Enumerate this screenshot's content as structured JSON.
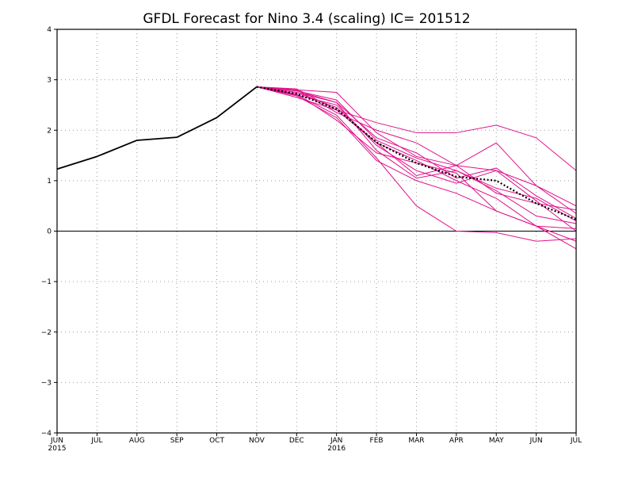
{
  "chart_data": {
    "type": "line",
    "title": "GFDL Forecast for Nino 3.4 (scaling) IC= 201512",
    "xlabel": "",
    "ylabel": "",
    "categories": [
      "JUN",
      "JUL",
      "AUG",
      "SEP",
      "OCT",
      "NOV",
      "DEC",
      "JAN",
      "FEB",
      "MAR",
      "APR",
      "MAY",
      "JUN",
      "JUL"
    ],
    "year_labels": [
      {
        "index": 0,
        "text": "2015"
      },
      {
        "index": 7,
        "text": "2016"
      }
    ],
    "ylim": [
      -4,
      4
    ],
    "yticks": [
      -4,
      -3,
      -2,
      -1,
      0,
      1,
      2,
      3,
      4
    ],
    "grid": true,
    "legend": "none",
    "zero_line": true,
    "colors": {
      "observed": "#000000",
      "members": "#e0118a",
      "mean": "#000000",
      "grid": "#9a9a9a"
    },
    "observed": {
      "x": [
        0,
        1,
        2,
        3,
        4,
        5
      ],
      "values": [
        1.23,
        1.48,
        1.8,
        1.86,
        2.25,
        2.86
      ]
    },
    "ensemble_members": [
      {
        "x": [
          5,
          6,
          7,
          8,
          9,
          10,
          11,
          12,
          13
        ],
        "values": [
          2.86,
          2.8,
          2.75,
          1.95,
          1.48,
          1.3,
          0.75,
          0.55,
          0.42
        ]
      },
      {
        "x": [
          5,
          6,
          7,
          8,
          9,
          10,
          11,
          12,
          13
        ],
        "values": [
          2.86,
          2.78,
          2.6,
          1.8,
          1.45,
          1.2,
          0.8,
          0.3,
          0.15
        ]
      },
      {
        "x": [
          5,
          6,
          7,
          8,
          9,
          10,
          11,
          12,
          13
        ],
        "values": [
          2.86,
          2.75,
          2.55,
          1.85,
          1.55,
          1.05,
          1.25,
          0.7,
          0.25
        ]
      },
      {
        "x": [
          5,
          6,
          7,
          8,
          9,
          10,
          11,
          12,
          13
        ],
        "values": [
          2.86,
          2.7,
          2.5,
          1.7,
          1.2,
          0.95,
          1.2,
          0.6,
          0.0
        ]
      },
      {
        "x": [
          5,
          6,
          7,
          8,
          9,
          10,
          11,
          12,
          13
        ],
        "values": [
          2.86,
          2.7,
          2.3,
          1.45,
          0.5,
          0.0,
          -0.03,
          -0.2,
          -0.15
        ]
      },
      {
        "x": [
          5,
          6,
          7,
          8,
          9,
          10,
          11,
          12,
          13
        ],
        "values": [
          2.86,
          2.68,
          2.25,
          1.4,
          1.0,
          0.75,
          0.4,
          0.1,
          -0.35
        ]
      },
      {
        "x": [
          5,
          6,
          7,
          8,
          9,
          10,
          11,
          12,
          13
        ],
        "values": [
          2.86,
          2.82,
          2.4,
          2.15,
          1.95,
          1.95,
          2.1,
          1.85,
          1.2
        ]
      },
      {
        "x": [
          5,
          6,
          7,
          8,
          9,
          10,
          11,
          12,
          13
        ],
        "values": [
          2.86,
          2.8,
          2.35,
          2.0,
          1.75,
          1.3,
          1.2,
          0.9,
          0.35
        ]
      },
      {
        "x": [
          5,
          6,
          7,
          8,
          9,
          10,
          11,
          12,
          13
        ],
        "values": [
          2.86,
          2.75,
          2.45,
          1.75,
          1.1,
          1.3,
          1.75,
          0.9,
          0.5
        ]
      },
      {
        "x": [
          5,
          6,
          7,
          8,
          9,
          10,
          11,
          12,
          13
        ],
        "values": [
          2.86,
          2.72,
          2.2,
          1.55,
          1.35,
          1.15,
          0.4,
          0.1,
          -0.2
        ]
      },
      {
        "x": [
          5,
          6,
          7,
          8,
          9,
          10,
          11,
          12,
          13
        ],
        "values": [
          2.86,
          2.78,
          2.55,
          1.6,
          1.05,
          1.2,
          0.85,
          0.65,
          0.2
        ]
      },
      {
        "x": [
          5,
          6,
          7,
          8,
          9,
          10,
          11,
          12,
          13
        ],
        "values": [
          2.86,
          2.65,
          2.4,
          1.75,
          1.4,
          1.0,
          0.65,
          0.1,
          0.05
        ]
      }
    ],
    "ensemble_mean": {
      "x": [
        5,
        6,
        7,
        8,
        9,
        10,
        11,
        12,
        13
      ],
      "values": [
        2.86,
        2.72,
        2.42,
        1.76,
        1.35,
        1.08,
        1.0,
        0.55,
        0.23
      ]
    }
  }
}
